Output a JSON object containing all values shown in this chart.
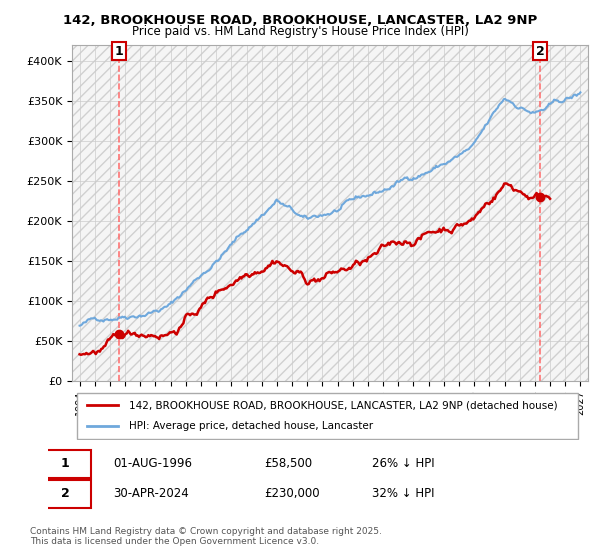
{
  "title1": "142, BROOKHOUSE ROAD, BROOKHOUSE, LANCASTER, LA2 9NP",
  "title2": "Price paid vs. HM Land Registry's House Price Index (HPI)",
  "ylabel_ticks": [
    "£0",
    "£50K",
    "£100K",
    "£150K",
    "£200K",
    "£250K",
    "£300K",
    "£350K",
    "£400K"
  ],
  "ytick_values": [
    0,
    50000,
    100000,
    150000,
    200000,
    250000,
    300000,
    350000,
    400000
  ],
  "ylim": [
    0,
    420000
  ],
  "xlim_start": 1993.5,
  "xlim_end": 2027.5,
  "xtick_years": [
    1994,
    1995,
    1996,
    1997,
    1998,
    1999,
    2000,
    2001,
    2002,
    2003,
    2004,
    2005,
    2006,
    2007,
    2008,
    2009,
    2010,
    2011,
    2012,
    2013,
    2014,
    2015,
    2016,
    2017,
    2018,
    2019,
    2020,
    2021,
    2022,
    2023,
    2024,
    2025,
    2026,
    2027
  ],
  "hpi_color": "#6fa8dc",
  "property_color": "#cc0000",
  "marker_color": "#cc0000",
  "dashed_line_color": "#ff6666",
  "annotation1_label": "1",
  "annotation1_year": 1996.58,
  "annotation1_price": 58500,
  "annotation2_label": "2",
  "annotation2_year": 2024.33,
  "annotation2_price": 230000,
  "legend_property": "142, BROOKHOUSE ROAD, BROOKHOUSE, LANCASTER, LA2 9NP (detached house)",
  "legend_hpi": "HPI: Average price, detached house, Lancaster",
  "note1_label": "1",
  "note1_date": "01-AUG-1996",
  "note1_price": "£58,500",
  "note1_hpi": "26% ↓ HPI",
  "note2_label": "2",
  "note2_date": "30-APR-2024",
  "note2_price": "£230,000",
  "note2_hpi": "32% ↓ HPI",
  "copyright": "Contains HM Land Registry data © Crown copyright and database right 2025.\nThis data is licensed under the Open Government Licence v3.0.",
  "bg_hatch_color": "#e0e0e0",
  "grid_color": "#cccccc",
  "hpi_linewidth": 1.5,
  "property_linewidth": 1.8
}
